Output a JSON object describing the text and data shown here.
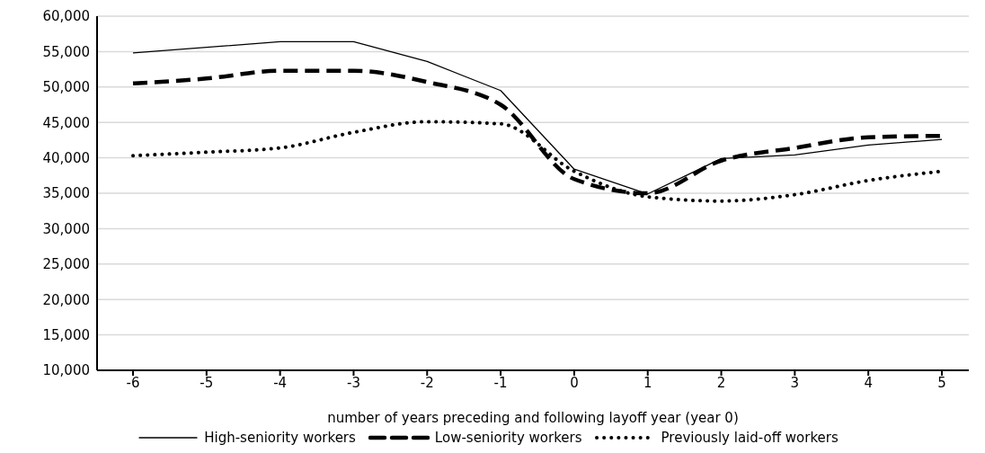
{
  "chart_data": {
    "type": "line",
    "xlabel": "number of years preceding and following layoff year (year 0)",
    "categories": [
      "-6",
      "-5",
      "-4",
      "-3",
      "-2",
      "-1",
      "0",
      "1",
      "2",
      "3",
      "4",
      "5"
    ],
    "ylim": [
      10000,
      60000
    ],
    "yticks": [
      {
        "value": 10000,
        "label": "10,000"
      },
      {
        "value": 15000,
        "label": "15,000"
      },
      {
        "value": 20000,
        "label": "20,000"
      },
      {
        "value": 25000,
        "label": "25,000"
      },
      {
        "value": 30000,
        "label": "30,000"
      },
      {
        "value": 35000,
        "label": "35,000"
      },
      {
        "value": 40000,
        "label": "40,000"
      },
      {
        "value": 45000,
        "label": "45,000"
      },
      {
        "value": 50000,
        "label": "50,000"
      },
      {
        "value": 55000,
        "label": "55,000"
      },
      {
        "value": 60000,
        "label": "60,000"
      }
    ],
    "grid": "y",
    "legend": "bottom",
    "marker": "none",
    "series": [
      {
        "name": "High-seniority workers",
        "color": "#000000",
        "line_style": "solid",
        "values": [
          54800,
          55600,
          56400,
          56400,
          53600,
          49500,
          38400,
          34900,
          39900,
          40400,
          41800,
          42600
        ]
      },
      {
        "name": "Low-seniority workers",
        "color": "#000000",
        "line_style": "dashed",
        "values": [
          50500,
          51200,
          52300,
          52300,
          50700,
          47500,
          37000,
          35000,
          39600,
          41400,
          42900,
          43100
        ]
      },
      {
        "name": "Previously laid-off workers",
        "color": "#000000",
        "line_style": "dotted",
        "values": [
          40300,
          40800,
          41400,
          43600,
          45100,
          44800,
          38100,
          34500,
          33900,
          34800,
          36800,
          38100
        ]
      }
    ]
  }
}
